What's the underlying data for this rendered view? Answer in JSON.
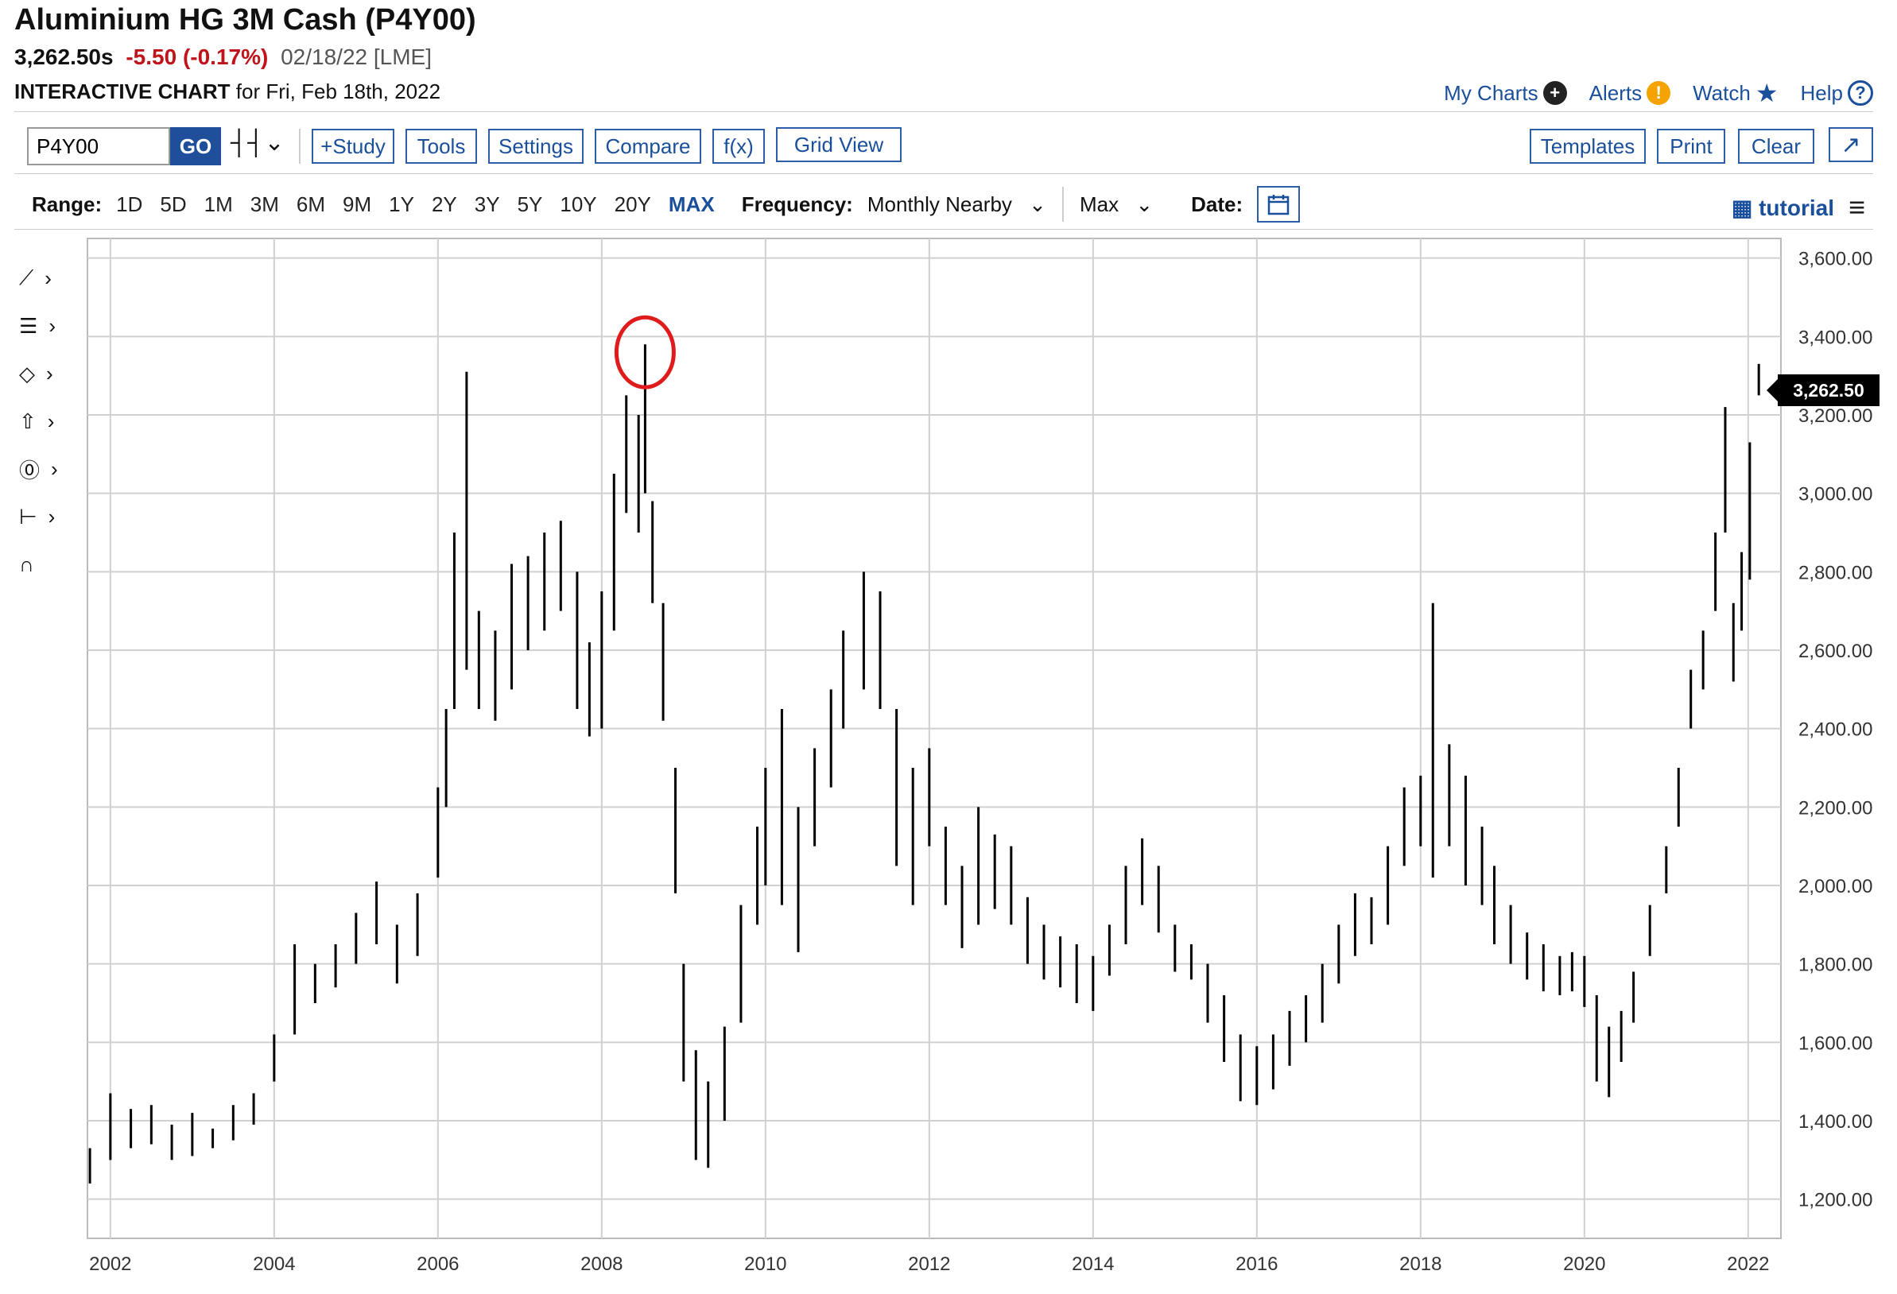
{
  "header": {
    "title": "Aluminium HG 3M Cash (P4Y00)",
    "last": "3,262.50s",
    "change": "-5.50 (-0.17%)",
    "date": "02/18/22 [LME]",
    "chart_kind": "INTERACTIVE CHART",
    "chart_for": "for Fri, Feb 18th, 2022"
  },
  "topnav": {
    "my_charts": "My Charts",
    "alerts": "Alerts",
    "watch": "Watch",
    "help": "Help"
  },
  "toolbar": {
    "symbol_value": "P4Y00",
    "go": "GO",
    "study": "+Study",
    "tools": "Tools",
    "settings": "Settings",
    "compare": "Compare",
    "fx": "f(x)",
    "grid_view": "Grid View",
    "templates": "Templates",
    "print": "Print",
    "clear": "Clear"
  },
  "rangebar": {
    "range_label": "Range:",
    "ranges": [
      "1D",
      "5D",
      "1M",
      "3M",
      "6M",
      "9M",
      "1Y",
      "2Y",
      "3Y",
      "5Y",
      "10Y",
      "20Y",
      "MAX"
    ],
    "active_range": "MAX",
    "frequency_label": "Frequency:",
    "frequency_value": "Monthly Nearby",
    "max_value": "Max",
    "date_label": "Date:",
    "tutorial": "tutorial"
  },
  "colors": {
    "accent": "#1a4f9c",
    "negative": "#c0141b",
    "annotation": "#e01b1b"
  },
  "icons": [
    "line-tool-icon",
    "fib-tool-icon",
    "shape-tool-icon",
    "arrow-tool-icon",
    "text-tool-icon",
    "measure-tool-icon",
    "magnet-icon"
  ],
  "chart_data": {
    "type": "ohlc",
    "ylim": [
      1100,
      3650
    ],
    "yticks": [
      1200,
      1400,
      1600,
      1800,
      2000,
      2200,
      2400,
      2600,
      2800,
      3000,
      3200,
      3400,
      3600
    ],
    "ytick_labels": [
      "1,200.00",
      "1,400.00",
      "1,600.00",
      "1,800.00",
      "2,000.00",
      "2,200.00",
      "2,400.00",
      "2,600.00",
      "2,800.00",
      "3,000.00",
      "3,200.00",
      "3,400.00",
      "3,600.00"
    ],
    "xticks": [
      2002,
      2004,
      2006,
      2008,
      2010,
      2012,
      2014,
      2016,
      2018,
      2020,
      2022
    ],
    "xtick_labels": [
      "2002",
      "2004",
      "2006",
      "2008",
      "2010",
      "2012",
      "2014",
      "2016",
      "2018",
      "2020",
      "2022"
    ],
    "last_value_label": "3,262.50",
    "last_value": 3262.5,
    "highlight": {
      "date": 2008.53,
      "value": 3380
    },
    "series": [
      [
        2001.75,
        1330,
        1240
      ],
      [
        2002.0,
        1470,
        1300
      ],
      [
        2002.25,
        1430,
        1330
      ],
      [
        2002.5,
        1440,
        1340
      ],
      [
        2002.75,
        1390,
        1300
      ],
      [
        2003.0,
        1420,
        1310
      ],
      [
        2003.25,
        1380,
        1330
      ],
      [
        2003.5,
        1440,
        1350
      ],
      [
        2003.75,
        1470,
        1390
      ],
      [
        2004.0,
        1620,
        1500
      ],
      [
        2004.25,
        1850,
        1620
      ],
      [
        2004.5,
        1800,
        1700
      ],
      [
        2004.75,
        1850,
        1740
      ],
      [
        2005.0,
        1930,
        1800
      ],
      [
        2005.25,
        2010,
        1850
      ],
      [
        2005.5,
        1900,
        1750
      ],
      [
        2005.75,
        1980,
        1820
      ],
      [
        2006.0,
        2250,
        2020
      ],
      [
        2006.1,
        2450,
        2200
      ],
      [
        2006.2,
        2900,
        2450
      ],
      [
        2006.35,
        3310,
        2550
      ],
      [
        2006.5,
        2700,
        2450
      ],
      [
        2006.7,
        2650,
        2420
      ],
      [
        2006.9,
        2820,
        2500
      ],
      [
        2007.1,
        2840,
        2600
      ],
      [
        2007.3,
        2900,
        2650
      ],
      [
        2007.5,
        2930,
        2700
      ],
      [
        2007.7,
        2800,
        2450
      ],
      [
        2007.85,
        2620,
        2380
      ],
      [
        2008.0,
        2750,
        2400
      ],
      [
        2008.15,
        3050,
        2650
      ],
      [
        2008.3,
        3250,
        2950
      ],
      [
        2008.45,
        3200,
        2900
      ],
      [
        2008.53,
        3380,
        3000
      ],
      [
        2008.62,
        2980,
        2720
      ],
      [
        2008.75,
        2720,
        2420
      ],
      [
        2008.9,
        2300,
        1980
      ],
      [
        2009.0,
        1800,
        1500
      ],
      [
        2009.15,
        1580,
        1300
      ],
      [
        2009.3,
        1500,
        1280
      ],
      [
        2009.5,
        1640,
        1400
      ],
      [
        2009.7,
        1950,
        1650
      ],
      [
        2009.9,
        2150,
        1900
      ],
      [
        2010.0,
        2300,
        2000
      ],
      [
        2010.2,
        2450,
        1950
      ],
      [
        2010.4,
        2200,
        1830
      ],
      [
        2010.6,
        2350,
        2100
      ],
      [
        2010.8,
        2500,
        2250
      ],
      [
        2010.95,
        2650,
        2400
      ],
      [
        2011.2,
        2800,
        2500
      ],
      [
        2011.4,
        2750,
        2450
      ],
      [
        2011.6,
        2450,
        2050
      ],
      [
        2011.8,
        2300,
        1950
      ],
      [
        2012.0,
        2350,
        2100
      ],
      [
        2012.2,
        2150,
        1950
      ],
      [
        2012.4,
        2050,
        1840
      ],
      [
        2012.6,
        2200,
        1900
      ],
      [
        2012.8,
        2130,
        1940
      ],
      [
        2013.0,
        2100,
        1900
      ],
      [
        2013.2,
        1970,
        1800
      ],
      [
        2013.4,
        1900,
        1760
      ],
      [
        2013.6,
        1870,
        1740
      ],
      [
        2013.8,
        1850,
        1700
      ],
      [
        2014.0,
        1820,
        1680
      ],
      [
        2014.2,
        1900,
        1770
      ],
      [
        2014.4,
        2050,
        1850
      ],
      [
        2014.6,
        2120,
        1950
      ],
      [
        2014.8,
        2050,
        1880
      ],
      [
        2015.0,
        1900,
        1780
      ],
      [
        2015.2,
        1850,
        1760
      ],
      [
        2015.4,
        1800,
        1650
      ],
      [
        2015.6,
        1720,
        1550
      ],
      [
        2015.8,
        1620,
        1450
      ],
      [
        2016.0,
        1590,
        1440
      ],
      [
        2016.2,
        1620,
        1480
      ],
      [
        2016.4,
        1680,
        1540
      ],
      [
        2016.6,
        1720,
        1600
      ],
      [
        2016.8,
        1800,
        1650
      ],
      [
        2017.0,
        1900,
        1750
      ],
      [
        2017.2,
        1980,
        1820
      ],
      [
        2017.4,
        1970,
        1850
      ],
      [
        2017.6,
        2100,
        1900
      ],
      [
        2017.8,
        2250,
        2050
      ],
      [
        2018.0,
        2280,
        2100
      ],
      [
        2018.15,
        2720,
        2020
      ],
      [
        2018.35,
        2360,
        2100
      ],
      [
        2018.55,
        2280,
        2000
      ],
      [
        2018.75,
        2150,
        1950
      ],
      [
        2018.9,
        2050,
        1850
      ],
      [
        2019.1,
        1950,
        1800
      ],
      [
        2019.3,
        1880,
        1760
      ],
      [
        2019.5,
        1850,
        1730
      ],
      [
        2019.7,
        1820,
        1720
      ],
      [
        2019.85,
        1830,
        1730
      ],
      [
        2020.0,
        1820,
        1690
      ],
      [
        2020.15,
        1720,
        1500
      ],
      [
        2020.3,
        1640,
        1460
      ],
      [
        2020.45,
        1680,
        1550
      ],
      [
        2020.6,
        1780,
        1650
      ],
      [
        2020.8,
        1950,
        1820
      ],
      [
        2021.0,
        2100,
        1980
      ],
      [
        2021.15,
        2300,
        2150
      ],
      [
        2021.3,
        2550,
        2400
      ],
      [
        2021.45,
        2650,
        2500
      ],
      [
        2021.6,
        2900,
        2700
      ],
      [
        2021.72,
        3220,
        2900
      ],
      [
        2021.82,
        2720,
        2520
      ],
      [
        2021.92,
        2850,
        2650
      ],
      [
        2022.02,
        3130,
        2780
      ],
      [
        2022.13,
        3330,
        3250
      ]
    ]
  }
}
